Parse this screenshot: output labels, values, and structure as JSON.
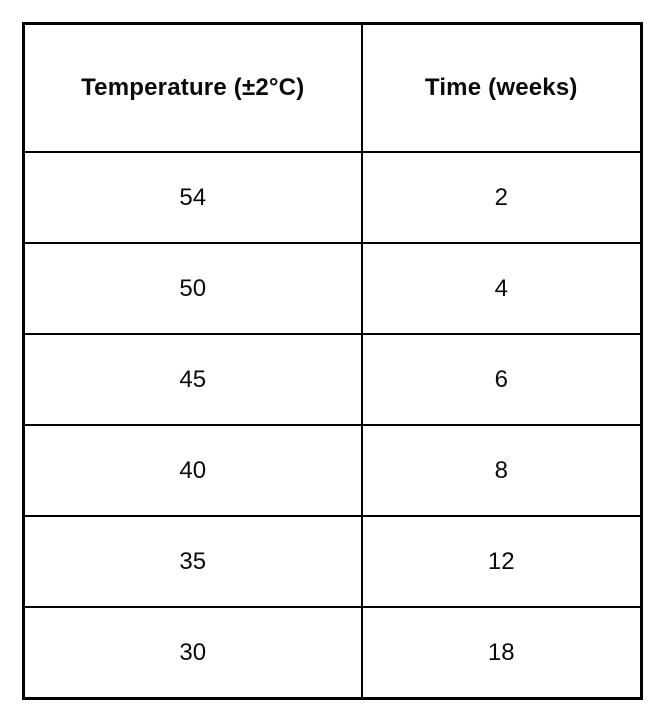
{
  "table": {
    "headers": [
      "Temperature (±2°C)",
      "Time (weeks)"
    ],
    "rows": [
      [
        "54",
        "2"
      ],
      [
        "50",
        "4"
      ],
      [
        "45",
        "6"
      ],
      [
        "40",
        "8"
      ],
      [
        "35",
        "12"
      ],
      [
        "30",
        "18"
      ]
    ]
  },
  "chart_data": {
    "type": "table",
    "title": "",
    "columns": [
      "Temperature (±2°C)",
      "Time (weeks)"
    ],
    "rows": [
      [
        54,
        2
      ],
      [
        50,
        4
      ],
      [
        45,
        6
      ],
      [
        40,
        8
      ],
      [
        35,
        12
      ],
      [
        30,
        18
      ]
    ],
    "series": [
      {
        "name": "Temperature (±2°C)",
        "values": [
          54,
          50,
          45,
          40,
          35,
          30
        ]
      },
      {
        "name": "Time (weeks)",
        "values": [
          2,
          4,
          6,
          8,
          12,
          18
        ]
      }
    ]
  },
  "colors": {
    "border": "#000000",
    "background": "#ffffff",
    "text": "#0a0a0a"
  }
}
